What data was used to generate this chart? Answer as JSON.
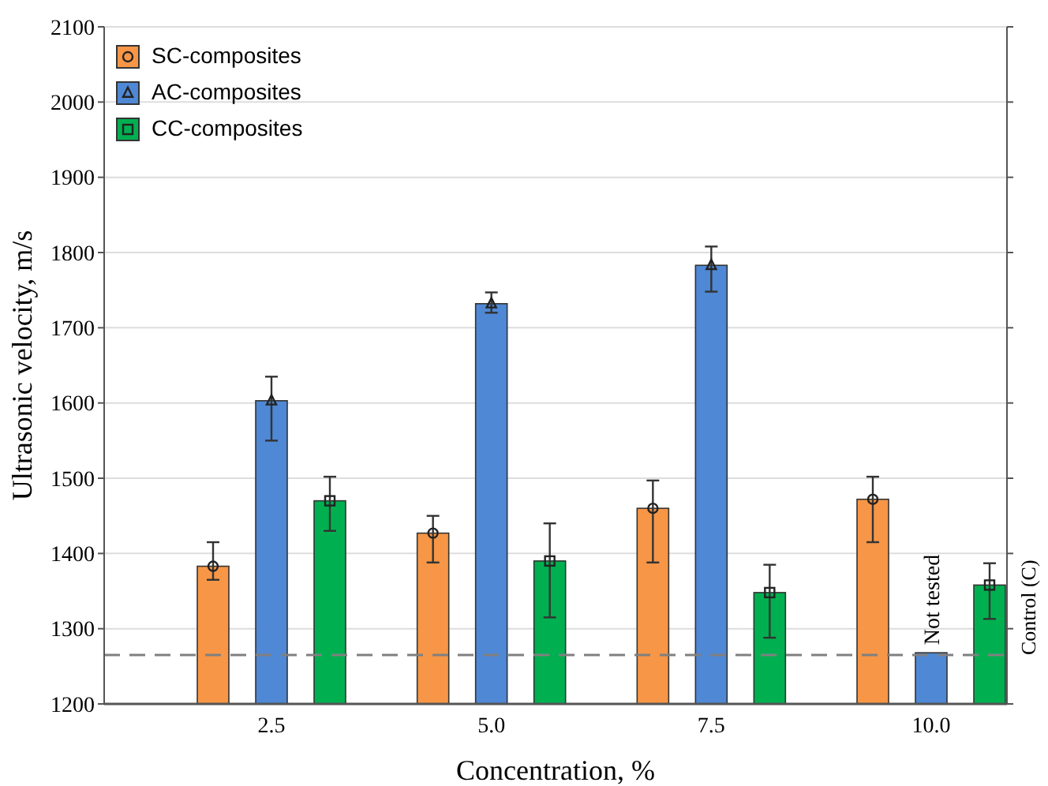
{
  "chart_data": {
    "type": "bar",
    "xlabel": "Concentration, %",
    "ylabel": "Ultrasonic velocity, m/s",
    "categories": [
      "2.5",
      "5.0",
      "7.5",
      "10.0"
    ],
    "series": [
      {
        "name": "SC-composites",
        "color": "#f79646",
        "marker": "circle",
        "values": [
          1383,
          1427,
          1460,
          1472
        ],
        "errors": [
          [
            1365,
            1415
          ],
          [
            1388,
            1450
          ],
          [
            1388,
            1497
          ],
          [
            1415,
            1502
          ]
        ]
      },
      {
        "name": "AC-composites",
        "color": "#4f88d4",
        "marker": "triangle",
        "values": [
          1603,
          1732,
          1783,
          1268
        ],
        "errors": [
          [
            1550,
            1635
          ],
          [
            1720,
            1747
          ],
          [
            1748,
            1808
          ],
          null
        ]
      },
      {
        "name": "CC-composites",
        "color": "#00b050",
        "marker": "square",
        "values": [
          1470,
          1390,
          1348,
          1358
        ],
        "errors": [
          [
            1430,
            1502
          ],
          [
            1315,
            1440
          ],
          [
            1288,
            1385
          ],
          [
            1313,
            1387
          ]
        ]
      }
    ],
    "ylim": [
      1200,
      2100
    ],
    "yticks": [
      1200,
      1300,
      1400,
      1500,
      1600,
      1700,
      1800,
      1900,
      2000,
      2100
    ],
    "grid": "y",
    "legend": "top left",
    "ref_lines": [
      {
        "axis": "y",
        "value": 1265,
        "label": "Control (C)",
        "color": "#808080",
        "line_style": "dashed"
      }
    ],
    "annotations": [
      {
        "text": "Not tested",
        "x": "10.0",
        "y": 1268
      }
    ]
  }
}
